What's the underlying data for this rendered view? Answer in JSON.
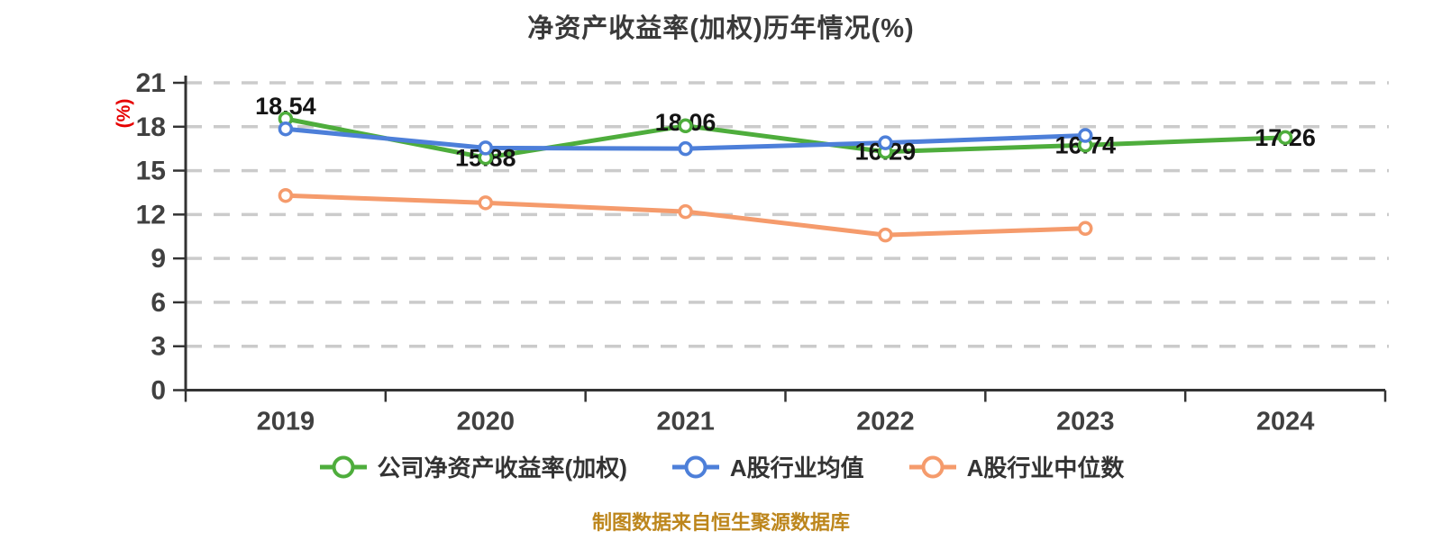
{
  "title": "净资产收益率(加权)历年情况(%)",
  "footer": "制图数据来自恒生聚源数据库",
  "colors": {
    "axis": "#333333",
    "grid": "#cbcbcb",
    "tick_label": "#404040",
    "data_label": "#141414",
    "y_unit_label": "#e60000",
    "title": "#3a3a3a",
    "footer": "#bd861c"
  },
  "chart_data": {
    "type": "line",
    "title": "净资产收益率(加权)历年情况(%)",
    "categories": [
      "2019",
      "2020",
      "2021",
      "2022",
      "2023",
      "2024"
    ],
    "series": [
      {
        "name": "公司净资产收益率(加权)",
        "color": "#4ead3c",
        "values": [
          18.54,
          15.88,
          18.06,
          16.29,
          16.74,
          17.26
        ],
        "labels": [
          "18.54",
          "15.88",
          "18.06",
          "16.29",
          "16.74",
          "17.26"
        ]
      },
      {
        "name": "A股行业均值",
        "color": "#4d7fd9",
        "values": [
          17.85,
          16.55,
          16.5,
          16.9,
          17.4,
          null
        ],
        "labels": []
      },
      {
        "name": "A股行业中位数",
        "color": "#f59b6c",
        "values": [
          13.3,
          12.8,
          12.2,
          10.6,
          11.05,
          null
        ],
        "labels": []
      }
    ],
    "xlabel": "",
    "ylabel": "(%)",
    "ylim": [
      0,
      21
    ],
    "y_ticks": [
      0,
      3,
      6,
      9,
      12,
      15,
      18,
      21
    ],
    "grid": "dashed",
    "legend_position": "bottom"
  }
}
